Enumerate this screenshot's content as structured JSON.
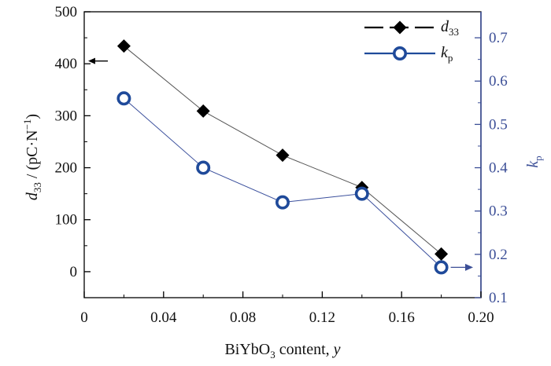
{
  "colors": {
    "d33": "#000000",
    "kp": "#1f4a9a",
    "right_axis": "#3c4f97",
    "d33_line": "#555555",
    "kp_line": "#3a4f9c"
  },
  "chart_data": {
    "type": "line",
    "x": [
      0.02,
      0.06,
      0.1,
      0.14,
      0.18
    ],
    "xlabel": {
      "main": "BiYbO",
      "sub": "3",
      "tail": " content, ",
      "var": "y"
    },
    "xlim": [
      0,
      0.2
    ],
    "x_ticks": [
      "0",
      "0.04",
      "0.08",
      "0.12",
      "0.16",
      "0.20"
    ],
    "ylabel_left": {
      "var": "d",
      "sub": "33",
      "unit": " / (pC·N",
      "sup": "−1",
      "close": ")"
    },
    "ylim_left": [
      -50,
      500
    ],
    "y_ticks_left": [
      "0",
      "100",
      "200",
      "300",
      "400",
      "500"
    ],
    "ylabel_right": {
      "var": "k",
      "sub": "p"
    },
    "ylim_right": [
      0.1,
      0.76
    ],
    "y_ticks_right": [
      "0.1",
      "0.2",
      "0.3",
      "0.4",
      "0.5",
      "0.6",
      "0.7"
    ],
    "legend_position": "top-right",
    "series": [
      {
        "name": "d",
        "name_sub": "33",
        "axis": "left",
        "marker": "filled-diamond",
        "values": [
          434,
          309,
          224,
          162,
          34
        ]
      },
      {
        "name": "k",
        "name_sub": "p",
        "axis": "right",
        "marker": "open-circle",
        "values": [
          0.56,
          0.4,
          0.32,
          0.34,
          0.17
        ]
      }
    ],
    "annotations": [
      {
        "type": "arrow",
        "direction": "left",
        "series": "d",
        "meaning": "points to left axis"
      },
      {
        "type": "arrow",
        "direction": "right",
        "series": "k",
        "meaning": "points to right axis"
      }
    ]
  }
}
